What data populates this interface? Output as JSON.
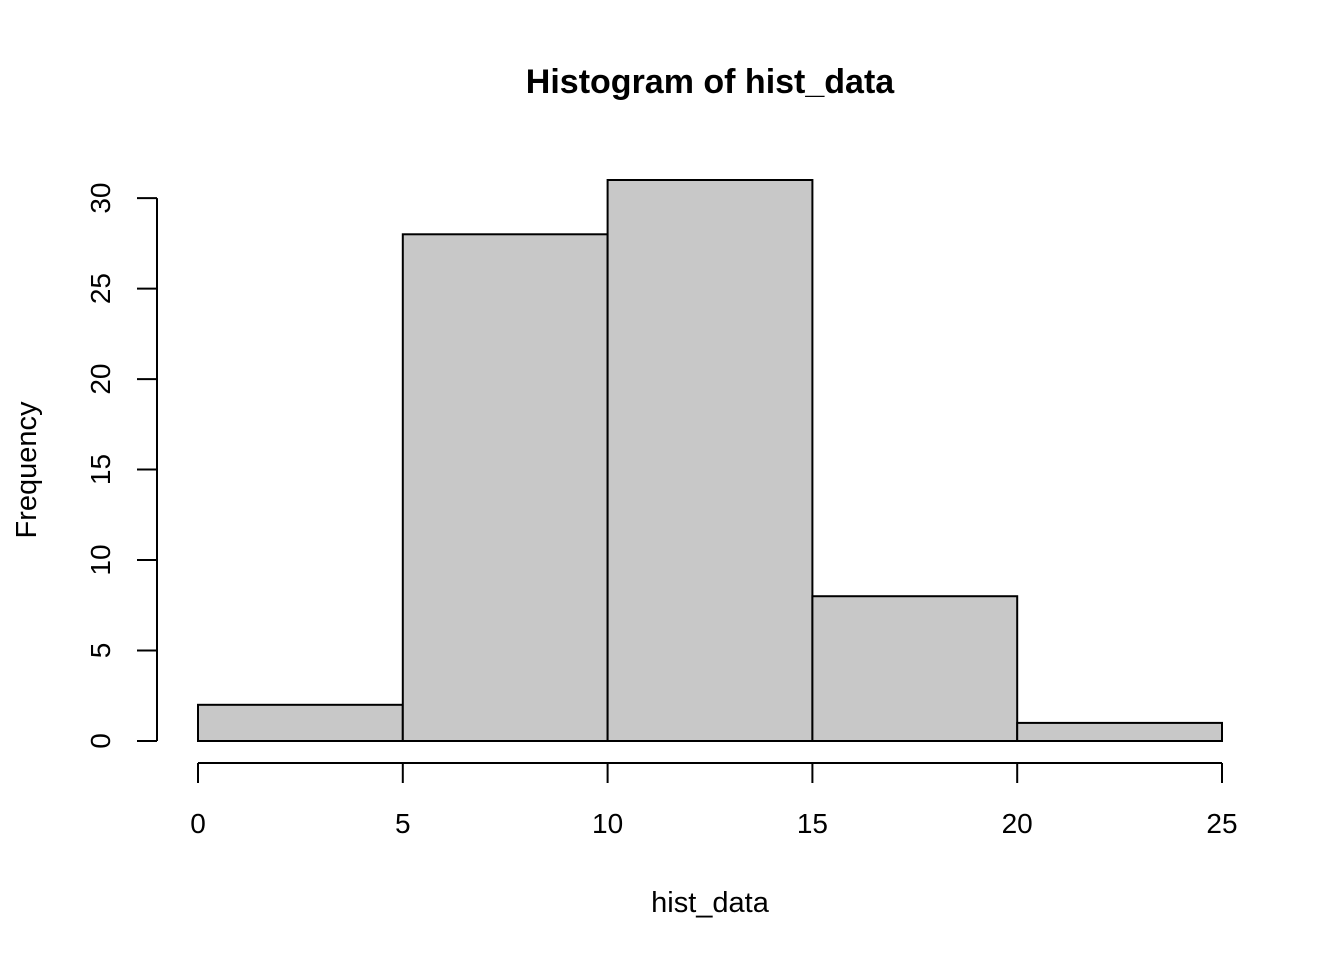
{
  "chart_data": {
    "type": "bar",
    "title": "Histogram of hist_data",
    "xlabel": "hist_data",
    "ylabel": "Frequency",
    "bins": [
      {
        "start": 0,
        "end": 5,
        "count": 2
      },
      {
        "start": 5,
        "end": 10,
        "count": 28
      },
      {
        "start": 10,
        "end": 15,
        "count": 31
      },
      {
        "start": 15,
        "end": 20,
        "count": 8
      },
      {
        "start": 20,
        "end": 25,
        "count": 1
      }
    ],
    "xlim": [
      0,
      25
    ],
    "ylim": [
      0,
      31
    ],
    "x_ticks": [
      "0",
      "5",
      "10",
      "15",
      "20",
      "25"
    ],
    "y_ticks": [
      "0",
      "5",
      "10",
      "15",
      "20",
      "25",
      "30"
    ],
    "bar_color": "#c8c8c8",
    "border_color": "#000000",
    "grid": false,
    "legend": "none"
  }
}
